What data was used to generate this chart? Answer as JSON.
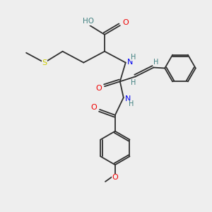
{
  "bg_color": "#eeeeee",
  "atom_colors": {
    "C": "#303030",
    "O": "#ee0000",
    "N": "#0000ee",
    "S": "#cccc00",
    "H": "#408080"
  },
  "bond_color": "#303030",
  "figsize": [
    3.0,
    3.0
  ],
  "dpi": 100
}
